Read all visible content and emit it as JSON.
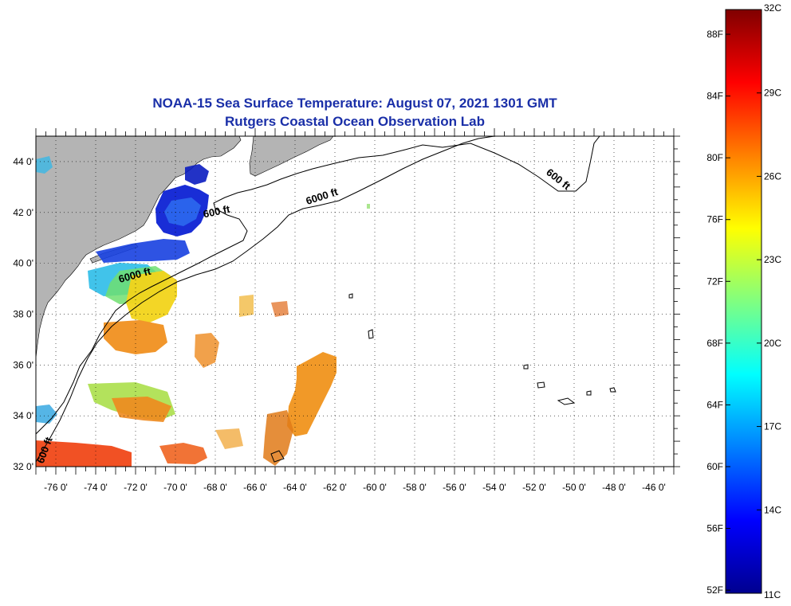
{
  "title": {
    "line1": "NOAA-15 Sea Surface Temperature:  August 07, 2021 1301 GMT",
    "line2": "Rutgers Coastal Ocean Observation Lab"
  },
  "map": {
    "lon_range": [
      -77,
      -45
    ],
    "lat_range": [
      32,
      45
    ],
    "lon_ticks": [
      -76,
      -74,
      -72,
      -70,
      -68,
      -66,
      -64,
      -62,
      -60,
      -58,
      -56,
      -54,
      -52,
      -50,
      -48,
      -46
    ],
    "lat_ticks": [
      32,
      34,
      36,
      38,
      40,
      42,
      44
    ],
    "lon_tick_labels": [
      "-76 0'",
      "-74 0'",
      "-72 0'",
      "-70 0'",
      "-68 0'",
      "-66 0'",
      "-64 0'",
      "-62 0'",
      "-60 0'",
      "-58 0'",
      "-56 0'",
      "-54 0'",
      "-52 0'",
      "-50 0'",
      "-48 0'",
      "-46 0'"
    ],
    "lat_tick_labels": [
      "32 0'",
      "34 0'",
      "36 0'",
      "38 0'",
      "40 0'",
      "42 0'",
      "44 0'"
    ],
    "contour_labels": [
      {
        "text": "600 ft",
        "lon": -67.9,
        "lat": 41.9,
        "angle": -12
      },
      {
        "text": "6000 ft",
        "lon": -62.6,
        "lat": 42.5,
        "angle": -18
      },
      {
        "text": "600 ft",
        "lon": -50.9,
        "lat": 43.2,
        "angle": 38
      },
      {
        "text": "6000 ft",
        "lon": -72.0,
        "lat": 39.4,
        "angle": -15
      },
      {
        "text": "600 ft",
        "lon": -76.4,
        "lat": 32.6,
        "angle": -70
      }
    ],
    "grid": "dotted",
    "land_color": "#b4b4b4"
  },
  "colorbar": {
    "celsius_range": [
      11,
      32
    ],
    "celsius_labels": [
      "32C",
      "29C",
      "26C",
      "23C",
      "20C",
      "17C",
      "14C",
      "11C"
    ],
    "celsius_values": [
      32,
      29,
      26,
      23,
      20,
      17,
      14,
      11
    ],
    "fahrenheit_labels": [
      "88F",
      "84F",
      "80F",
      "76F",
      "72F",
      "68F",
      "64F",
      "60F",
      "56F",
      "52F"
    ],
    "fahrenheit_values": [
      88,
      84,
      80,
      76,
      72,
      68,
      64,
      60,
      56,
      52
    ],
    "colormap": [
      "#00008f",
      "#0000ff",
      "#0080ff",
      "#00ffff",
      "#80ff80",
      "#ffff00",
      "#ff8000",
      "#ff0000",
      "#800000"
    ]
  }
}
